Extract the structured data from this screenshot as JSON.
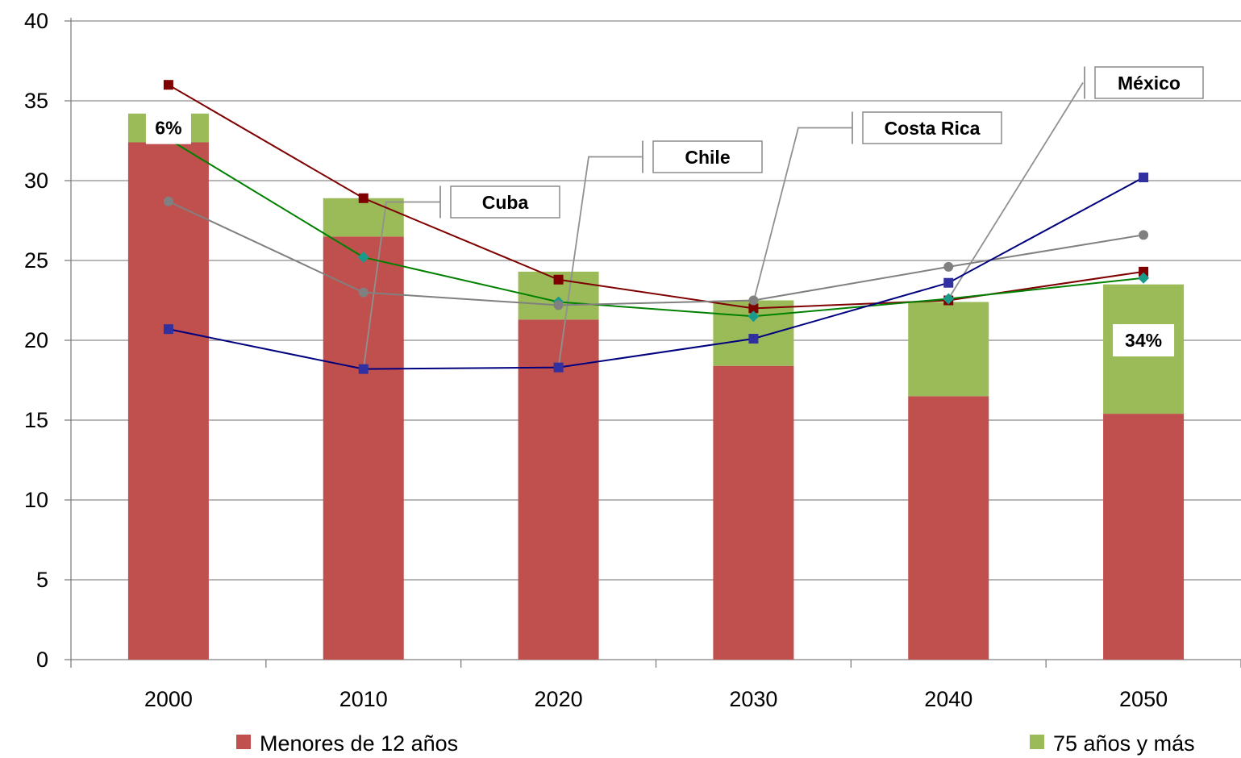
{
  "chart_data": {
    "type": "bar",
    "stacked": true,
    "categories": [
      "2000",
      "2010",
      "2020",
      "2030",
      "2040",
      "2050"
    ],
    "ylim": [
      0,
      40
    ],
    "yticks": [
      0,
      5,
      10,
      15,
      20,
      25,
      30,
      35,
      40
    ],
    "grid": true,
    "legend_position": "bottom",
    "series": [
      {
        "name": "Menores de 12 años",
        "color": "#c0504d",
        "values": [
          32.4,
          26.5,
          21.3,
          18.4,
          16.5,
          15.4
        ]
      },
      {
        "name": "75 años y más",
        "color": "#9bbb59",
        "values": [
          1.8,
          2.4,
          3.0,
          4.1,
          5.9,
          8.1
        ]
      }
    ],
    "lines": [
      {
        "color": "#7f0000",
        "marker": "square",
        "values": [
          36.0,
          28.9,
          23.8,
          22.0,
          22.5,
          24.3
        ]
      },
      {
        "color": "#008000",
        "marker": "diamond",
        "marker_color": "#1a9a8a",
        "values": [
          32.6,
          25.2,
          22.4,
          21.5,
          22.6,
          23.9
        ]
      },
      {
        "color": "#808080",
        "marker": "circle",
        "values": [
          28.7,
          23.0,
          22.2,
          22.5,
          24.6,
          26.6
        ]
      },
      {
        "color": "#00007f",
        "marker": "square",
        "marker_color": "#3030a0",
        "values": [
          20.7,
          18.2,
          18.3,
          20.1,
          23.6,
          30.2
        ]
      }
    ],
    "bar_labels": [
      {
        "category": "2000",
        "text": "6%",
        "y": 33.3
      },
      {
        "category": "2050",
        "text": "34%",
        "y": 20.0
      }
    ],
    "callouts": [
      {
        "text": "Cuba",
        "point": [
          "2010",
          18.2
        ]
      },
      {
        "text": "Chile",
        "point": [
          "2020",
          18.3
        ]
      },
      {
        "text": "Costa Rica",
        "point": [
          "2030",
          22.4
        ]
      },
      {
        "text": "México",
        "point": [
          "2040",
          22.6
        ]
      }
    ]
  }
}
